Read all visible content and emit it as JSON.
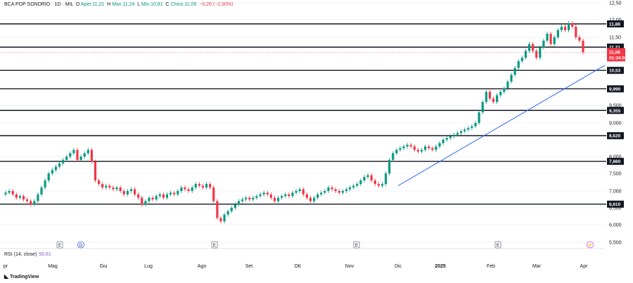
{
  "header": {
    "symbol": "BCA POP SONDRIO · 1D · MIL",
    "open_label": "O",
    "open": "Aper.11,21",
    "high_label": "H",
    "high": "Max.11,24",
    "low_label": "L",
    "low": "Min.10,91",
    "close_label": "C",
    "close": "Chius.11,06",
    "change": "−0,26 (−2,30%)"
  },
  "indicator": {
    "label": "RSI (14, close)",
    "value": "50,61"
  },
  "brand": "TradingView",
  "colors": {
    "up": "#089981",
    "down": "#f23645",
    "level": "#131722",
    "trend": "#2962ff",
    "last": "#f23645",
    "rsi": "#7e57c2"
  },
  "chart_data": {
    "type": "candlestick",
    "x_labels": [
      "pr",
      "Mag",
      "Giu",
      "Lug",
      "Ago",
      "Set",
      "Ott",
      "Nov",
      "Dic",
      "2025",
      "Feb",
      "Mar",
      "Apr"
    ],
    "y_ticks": [
      "12,50",
      "12,00",
      "11,50",
      "9,500",
      "9,000",
      "8,000",
      "7,500",
      "7,000",
      "6,500",
      "6,000",
      "5,500"
    ],
    "ylim": [
      5.5,
      12.5
    ],
    "levels": [
      {
        "value": 11.88,
        "label": "11,88"
      },
      {
        "value": 11.21,
        "label": "11,21"
      },
      {
        "value": 10.53,
        "label": "10,53"
      },
      {
        "value": 9.99,
        "label": "9,990"
      },
      {
        "value": 9.355,
        "label": "9,355"
      },
      {
        "value": 8.62,
        "label": "8,620"
      },
      {
        "value": 7.86,
        "label": "7,860"
      },
      {
        "value": 6.61,
        "label": "6,610"
      }
    ],
    "last_price": {
      "value": 11.06,
      "label": "11,06",
      "countdown": "01:34:01"
    },
    "trendline": {
      "from": {
        "period": "Dic",
        "value": 7.15
      },
      "to": {
        "period": "Apr",
        "value": 10.68
      }
    },
    "event_markers": [
      {
        "period": "Mag",
        "symbol": "E"
      },
      {
        "period": "Mag",
        "symbol": "D"
      },
      {
        "period": "Ago",
        "symbol": "E"
      },
      {
        "period": "Nov",
        "symbol": "E"
      },
      {
        "period": "Feb",
        "symbol": "E"
      },
      {
        "period": "Mar",
        "symbol": "⚡"
      }
    ],
    "closes": [
      6.95,
      7.0,
      6.9,
      6.8,
      6.85,
      6.75,
      6.7,
      6.6,
      6.7,
      6.9,
      7.1,
      7.3,
      7.5,
      7.6,
      7.7,
      7.8,
      7.9,
      8.0,
      8.1,
      8.2,
      7.9,
      8.0,
      8.1,
      8.2,
      7.85,
      7.3,
      7.2,
      7.1,
      7.15,
      7.1,
      7.05,
      7.1,
      7.0,
      6.9,
      7.0,
      7.05,
      6.9,
      6.8,
      6.6,
      6.7,
      6.8,
      6.75,
      6.85,
      6.9,
      6.8,
      6.9,
      6.95,
      6.9,
      7.0,
      7.1,
      7.05,
      7.0,
      7.1,
      7.2,
      7.15,
      7.1,
      7.2,
      7.1,
      6.7,
      6.2,
      6.1,
      6.3,
      6.4,
      6.5,
      6.6,
      6.7,
      6.75,
      6.8,
      6.75,
      6.8,
      6.85,
      6.9,
      6.95,
      6.9,
      6.8,
      6.7,
      6.8,
      6.85,
      6.9,
      6.85,
      6.95,
      7.0,
      7.05,
      6.9,
      6.8,
      6.7,
      6.8,
      6.9,
      6.95,
      7.0,
      7.1,
      7.05,
      7.0,
      6.95,
      7.0,
      7.05,
      7.1,
      7.15,
      7.2,
      7.3,
      7.4,
      7.45,
      7.3,
      7.2,
      7.15,
      7.2,
      7.5,
      7.9,
      8.1,
      8.2,
      8.25,
      8.3,
      8.35,
      8.3,
      8.2,
      8.15,
      8.2,
      8.3,
      8.25,
      8.2,
      8.3,
      8.4,
      8.5,
      8.55,
      8.6,
      8.65,
      8.7,
      8.75,
      8.8,
      8.85,
      8.9,
      9.0,
      9.3,
      9.6,
      9.9,
      9.7,
      9.6,
      9.8,
      9.9,
      10.0,
      10.2,
      10.4,
      10.6,
      10.8,
      10.9,
      11.1,
      11.3,
      11.1,
      10.9,
      11.2,
      11.4,
      11.6,
      11.3,
      11.5,
      11.7,
      11.8,
      11.7,
      11.9,
      11.8,
      11.5,
      11.4,
      11.06
    ]
  }
}
